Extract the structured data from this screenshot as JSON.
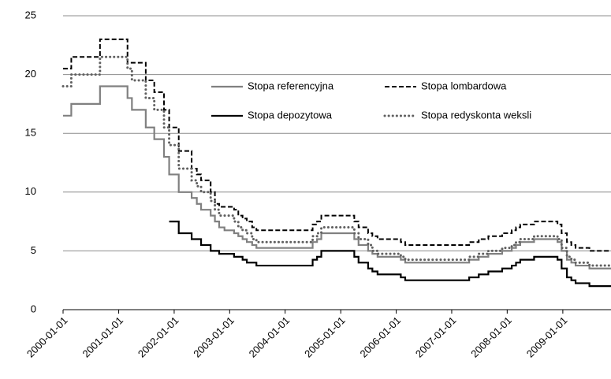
{
  "chart_data": {
    "type": "step-line",
    "xlim": [
      "2000-01-01",
      "2009-11-14"
    ],
    "xticks": [
      "2000-01-01",
      "2001-01-01",
      "2002-01-01",
      "2003-01-01",
      "2004-01-01",
      "2005-01-01",
      "2006-01-01",
      "2007-01-01",
      "2008-01-01",
      "2009-01-01"
    ],
    "ylim": [
      0,
      25
    ],
    "yticks": [
      0,
      5,
      10,
      15,
      20,
      25
    ],
    "grid": true,
    "series": [
      {
        "name": "Stopa referencyjna",
        "color": "#808080",
        "line_style": "solid",
        "x": [
          "2000-01-01",
          "2000-02-24",
          "2000-08-31",
          "2001-02-28",
          "2001-03-29",
          "2001-06-28",
          "2001-08-23",
          "2001-10-26",
          "2001-11-29",
          "2002-01-31",
          "2002-04-26",
          "2002-05-30",
          "2002-06-27",
          "2002-08-29",
          "2002-09-26",
          "2002-10-24",
          "2002-11-28",
          "2003-01-30",
          "2003-02-27",
          "2003-03-27",
          "2003-04-24",
          "2003-05-29",
          "2003-06-26",
          "2004-06-30",
          "2004-07-29",
          "2004-08-26",
          "2005-03-31",
          "2005-04-28",
          "2005-06-30",
          "2005-07-28",
          "2005-08-31",
          "2006-01-31",
          "2006-03-01",
          "2007-04-26",
          "2007-06-28",
          "2007-08-30",
          "2007-11-29",
          "2008-01-31",
          "2008-02-28",
          "2008-03-27",
          "2008-06-26",
          "2008-11-27",
          "2008-12-24",
          "2009-01-28",
          "2009-02-26",
          "2009-03-26",
          "2009-06-25"
        ],
        "values": [
          16.5,
          17.5,
          19,
          18,
          17,
          15.5,
          14.5,
          13,
          11.5,
          10,
          9.5,
          9,
          8.5,
          8,
          7.5,
          7,
          6.75,
          6.5,
          6.25,
          6,
          5.75,
          5.5,
          5.25,
          5.75,
          6,
          6.5,
          6,
          5.5,
          5,
          4.75,
          4.5,
          4.25,
          4,
          4.25,
          4.5,
          4.75,
          5,
          5.25,
          5.5,
          5.75,
          6,
          5.75,
          5,
          4.25,
          4,
          3.75,
          3.5
        ]
      },
      {
        "name": "Stopa lombardowa",
        "color": "#000000",
        "line_style": "dashed",
        "x": [
          "2000-01-01",
          "2000-02-24",
          "2000-08-31",
          "2001-02-28",
          "2001-06-28",
          "2001-08-23",
          "2001-10-26",
          "2001-11-29",
          "2002-01-31",
          "2002-04-26",
          "2002-05-30",
          "2002-06-27",
          "2002-08-29",
          "2002-09-26",
          "2002-10-24",
          "2003-01-30",
          "2003-02-27",
          "2003-03-27",
          "2003-04-24",
          "2003-05-29",
          "2003-06-26",
          "2004-06-30",
          "2004-07-29",
          "2004-08-26",
          "2005-03-31",
          "2005-04-28",
          "2005-06-30",
          "2005-07-28",
          "2005-08-31",
          "2006-01-31",
          "2006-03-01",
          "2007-04-26",
          "2007-06-28",
          "2007-08-30",
          "2007-11-29",
          "2008-01-31",
          "2008-02-28",
          "2008-03-27",
          "2008-06-26",
          "2008-11-27",
          "2008-12-24",
          "2009-01-28",
          "2009-02-26",
          "2009-03-26",
          "2009-06-25"
        ],
        "values": [
          20.5,
          21.5,
          23,
          21,
          19.5,
          18.5,
          17,
          15.5,
          13.5,
          12,
          11.5,
          11,
          10,
          9,
          8.75,
          8.5,
          8,
          7.75,
          7.5,
          7,
          6.75,
          7.25,
          7.5,
          8,
          7.5,
          7,
          6.5,
          6.25,
          6,
          5.75,
          5.5,
          5.75,
          6,
          6.25,
          6.5,
          6.75,
          7,
          7.25,
          7.5,
          7.25,
          6.5,
          5.75,
          5.5,
          5.25,
          5
        ]
      },
      {
        "name": "Stopa depozytowa",
        "color": "#000000",
        "line_style": "solid",
        "x": [
          "2001-11-29",
          "2002-01-31",
          "2002-04-26",
          "2002-06-27",
          "2002-08-29",
          "2002-10-24",
          "2003-01-30",
          "2003-03-27",
          "2003-04-24",
          "2003-06-26",
          "2004-06-30",
          "2004-07-29",
          "2004-08-26",
          "2005-03-31",
          "2005-04-28",
          "2005-06-30",
          "2005-07-28",
          "2005-08-31",
          "2006-01-31",
          "2006-03-01",
          "2007-04-26",
          "2007-06-28",
          "2007-08-30",
          "2007-11-29",
          "2008-01-31",
          "2008-02-28",
          "2008-03-27",
          "2008-06-26",
          "2008-11-27",
          "2008-12-24",
          "2009-01-28",
          "2009-02-26",
          "2009-03-26",
          "2009-06-25"
        ],
        "values": [
          7.5,
          6.5,
          6,
          5.5,
          5,
          4.75,
          4.5,
          4.25,
          4,
          3.75,
          4.25,
          4.5,
          5,
          4.5,
          4,
          3.5,
          3.25,
          3,
          2.75,
          2.5,
          2.75,
          3,
          3.25,
          3.5,
          3.75,
          4,
          4.25,
          4.5,
          4.25,
          3.5,
          2.75,
          2.5,
          2.25,
          2
        ]
      },
      {
        "name": "Stopa redyskonta weksli",
        "color": "#606060",
        "line_style": "dotted",
        "x": [
          "2000-01-01",
          "2000-02-24",
          "2000-08-31",
          "2001-02-28",
          "2001-03-29",
          "2001-06-28",
          "2001-08-23",
          "2001-10-26",
          "2001-11-29",
          "2002-01-31",
          "2002-04-26",
          "2002-05-30",
          "2002-06-27",
          "2002-08-29",
          "2002-09-26",
          "2002-10-24",
          "2003-01-30",
          "2003-02-27",
          "2003-03-27",
          "2003-04-24",
          "2003-05-29",
          "2003-06-26",
          "2004-06-30",
          "2004-07-29",
          "2004-08-26",
          "2005-03-31",
          "2005-04-28",
          "2005-06-30",
          "2005-07-28",
          "2005-08-31",
          "2006-01-31",
          "2006-03-01",
          "2007-04-26",
          "2007-06-28",
          "2007-08-30",
          "2007-11-29",
          "2008-01-31",
          "2008-02-28",
          "2008-03-27",
          "2008-06-26",
          "2008-11-27",
          "2008-12-24",
          "2009-01-28",
          "2009-02-26",
          "2009-03-26",
          "2009-06-25"
        ],
        "values": [
          19,
          20,
          21.5,
          20.5,
          19.5,
          18,
          17,
          15.5,
          14,
          12,
          11,
          10.5,
          10,
          9.25,
          8.5,
          8,
          7.5,
          7,
          6.75,
          6.5,
          6,
          5.75,
          6.25,
          6.5,
          7,
          6.5,
          6,
          5.5,
          5,
          4.75,
          4.5,
          4.25,
          4.5,
          4.75,
          5,
          5.25,
          5.5,
          5.75,
          6,
          6.25,
          6,
          5.25,
          4.5,
          4.25,
          4,
          3.75
        ]
      }
    ],
    "legend": [
      [
        0,
        1
      ],
      [
        2,
        3
      ]
    ]
  }
}
